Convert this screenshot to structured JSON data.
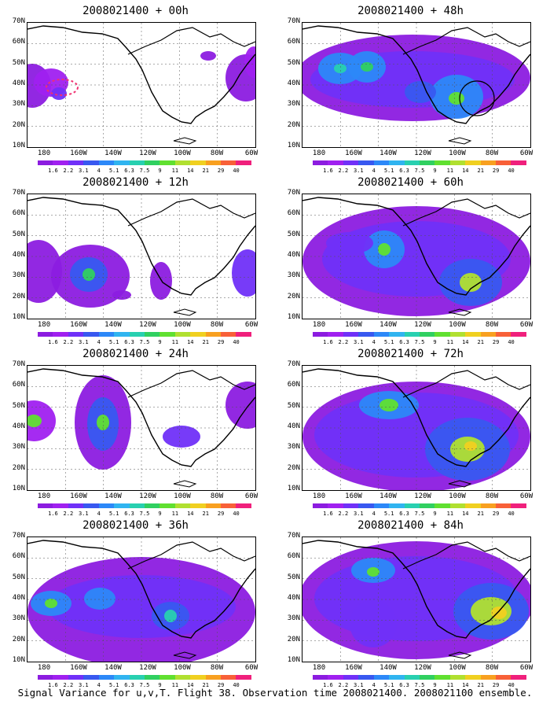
{
  "panels": [
    {
      "title": "2008021400 + 00h"
    },
    {
      "title": "2008021400 + 48h"
    },
    {
      "title": "2008021400 + 12h"
    },
    {
      "title": "2008021400 + 60h"
    },
    {
      "title": "2008021400 + 24h"
    },
    {
      "title": "2008021400 + 72h"
    },
    {
      "title": "2008021400 + 36h"
    },
    {
      "title": "2008021400 + 84h"
    }
  ],
  "lat_labels": [
    "70N",
    "60N",
    "50N",
    "40N",
    "30N",
    "20N",
    "10N"
  ],
  "lon_labels": [
    "180",
    "160W",
    "140W",
    "120W",
    "100W",
    "80W",
    "60W"
  ],
  "colorbar": {
    "labels": [
      "1.6",
      "2.2",
      "3.1",
      "4",
      "5.1",
      "6.3",
      "7.5",
      "9",
      "11",
      "14",
      "21",
      "29",
      "40"
    ],
    "colors": [
      "#8c1ce0",
      "#a020f0",
      "#7030f8",
      "#3858f0",
      "#2c88f8",
      "#30b4f0",
      "#28d0b0",
      "#30d060",
      "#60e030",
      "#b0e030",
      "#f0d020",
      "#f8a020",
      "#f86038",
      "#f0207c"
    ]
  },
  "footer": "Signal Variance for u,v,T. Flight 38. Observation time 2008021400. 2008021100 ensemble."
}
